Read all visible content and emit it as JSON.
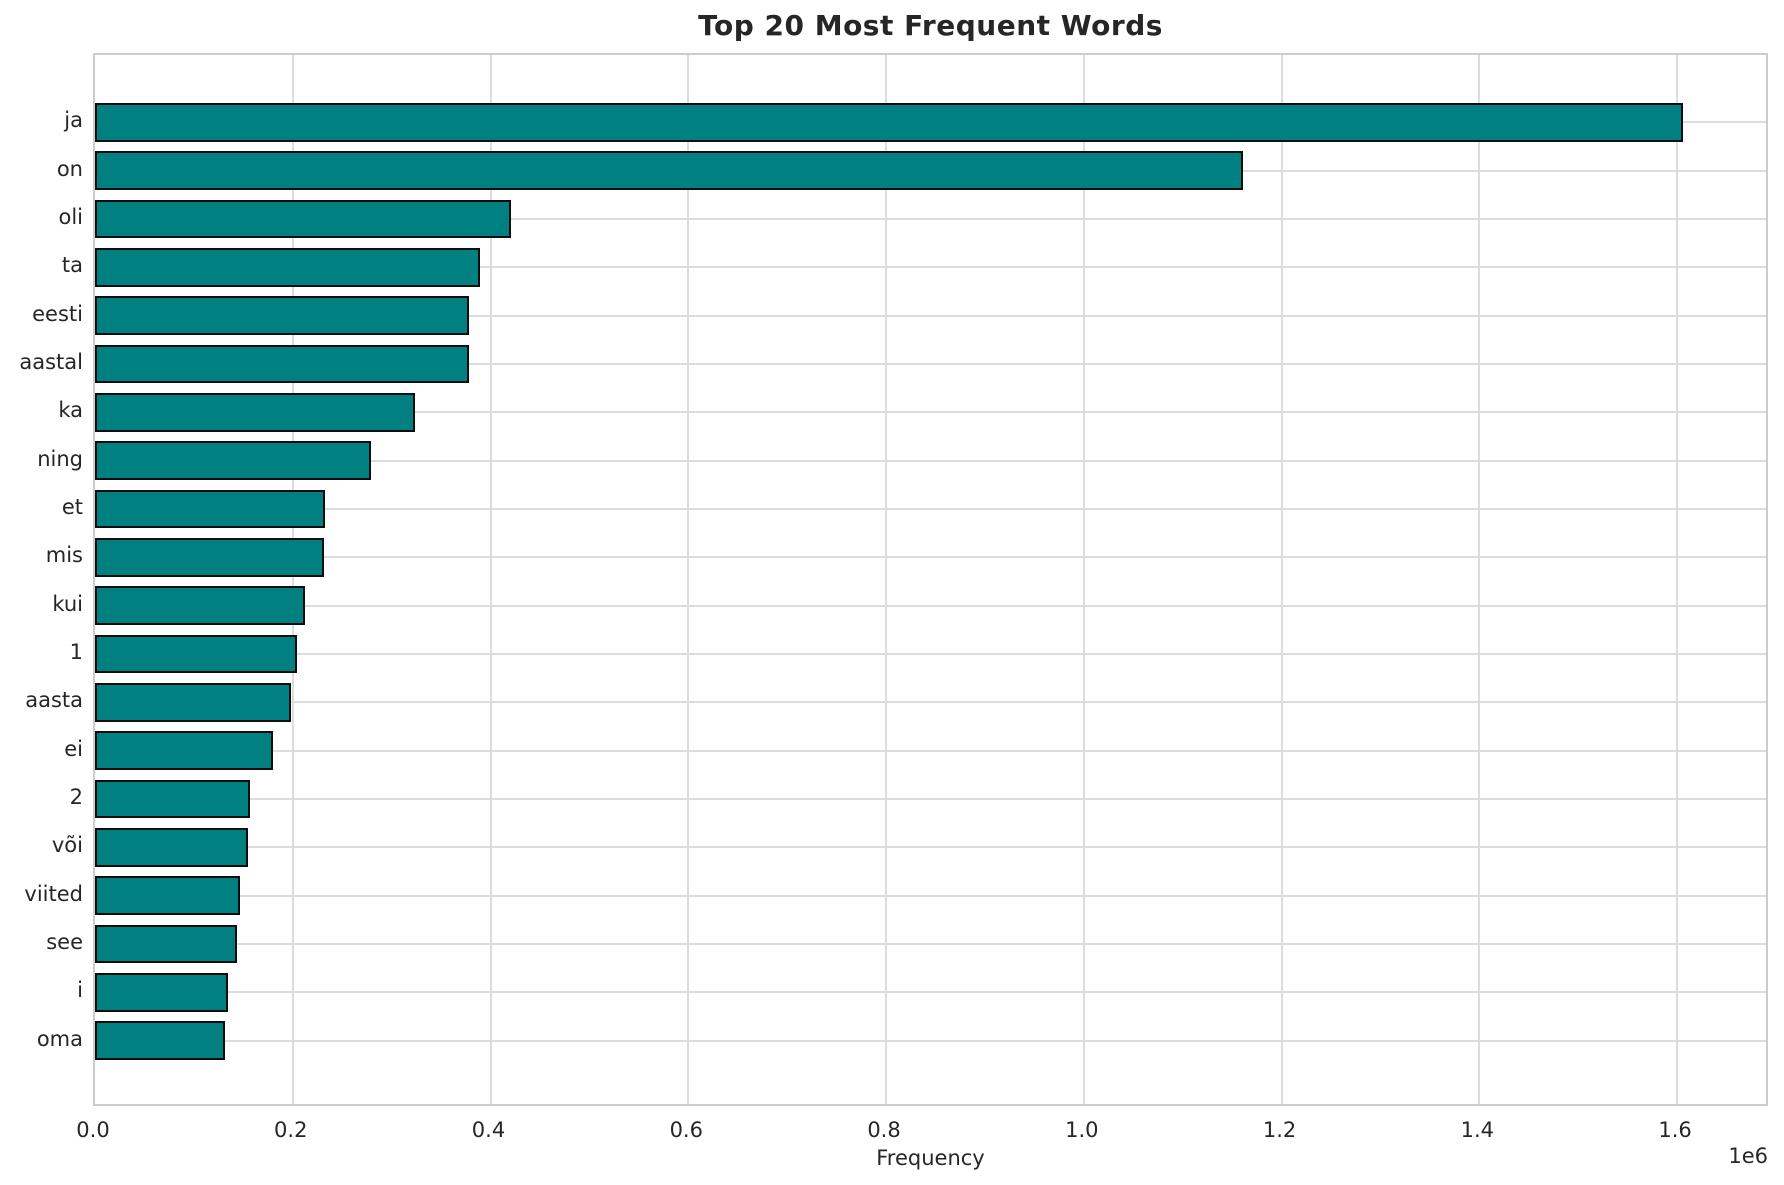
{
  "chart_data": {
    "type": "bar",
    "orientation": "horizontal",
    "title": "Top 20 Most Frequent Words",
    "xlabel": "Frequency",
    "offset_text": "1e6",
    "categories": [
      "ja",
      "on",
      "oli",
      "ta",
      "eesti",
      "aastal",
      "ka",
      "ning",
      "et",
      "mis",
      "kui",
      "1",
      "aasta",
      "ei",
      "2",
      "või",
      "viited",
      "see",
      "i",
      "oma"
    ],
    "values": [
      1606000,
      1161000,
      421000,
      389000,
      378000,
      378000,
      324000,
      279000,
      233000,
      232000,
      212000,
      204000,
      198000,
      180000,
      157000,
      155000,
      147000,
      144000,
      135000,
      131000
    ],
    "xlim": [
      0,
      1694000
    ],
    "xticks": [
      0,
      200000,
      400000,
      600000,
      800000,
      1000000,
      1200000,
      1400000,
      1600000
    ],
    "xtick_labels": [
      "0.0",
      "0.2",
      "0.4",
      "0.6",
      "0.8",
      "1.0",
      "1.2",
      "1.4",
      "1.6"
    ],
    "grid": true,
    "legend_position": "none",
    "bar_color": "#008080",
    "bar_edge_color": "#0d0d0d",
    "grid_color": "#dcdcdc",
    "spine_color": "#cccccc",
    "text_color": "#262626",
    "background_color": "#ffffff"
  }
}
